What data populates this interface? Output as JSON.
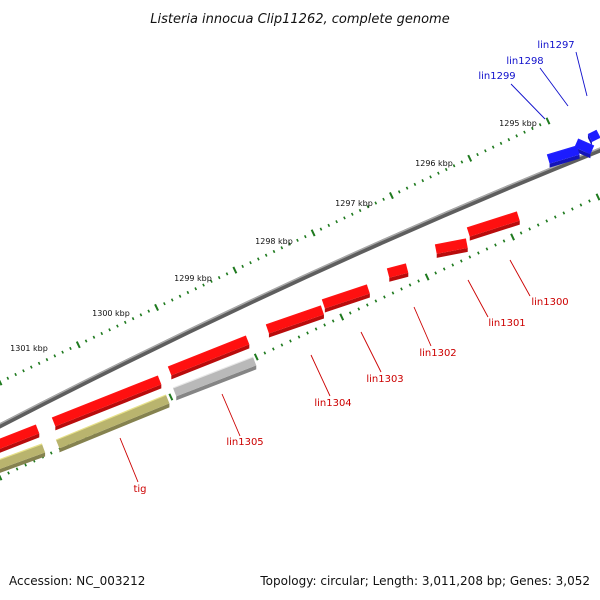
{
  "title": "Listeria innocua Clip11262, complete genome",
  "accession": "Accession: NC_003212",
  "summary": "Topology: circular; Length: 3,011,208 bp; Genes: 3,052",
  "colors": {
    "backbone": "#7a7a7a",
    "ticks": "#1f7a1f",
    "forward": "#ff1010",
    "forward_blue": "#1c1cff",
    "reverse_gray": "#b9b9b9",
    "reverse_olive": "#b9b46e",
    "label_red": "#cc0000",
    "label_blue": "#1010cc"
  },
  "ticks": [
    {
      "kbp": 1295,
      "label": "1295 kbp"
    },
    {
      "kbp": 1296,
      "label": "1296 kbp"
    },
    {
      "kbp": 1297,
      "label": "1297 kbp"
    },
    {
      "kbp": 1298,
      "label": "1298 kbp"
    },
    {
      "kbp": 1299,
      "label": "1299 kbp"
    },
    {
      "kbp": 1300,
      "label": "1300 kbp"
    },
    {
      "kbp": 1301,
      "label": "1301 kbp"
    }
  ],
  "genes": [
    {
      "name": "lin1297",
      "color": "forward_blue",
      "label_color": "label_blue"
    },
    {
      "name": "lin1298",
      "color": "forward_blue",
      "label_color": "label_blue"
    },
    {
      "name": "lin1299",
      "color": "forward_blue",
      "label_color": "label_blue"
    },
    {
      "name": "lin1300",
      "color": "forward",
      "label_color": "label_red"
    },
    {
      "name": "lin1301",
      "color": "forward",
      "label_color": "label_red"
    },
    {
      "name": "lin1302",
      "color": "forward",
      "label_color": "label_red"
    },
    {
      "name": "lin1303",
      "color": "forward",
      "label_color": "label_red"
    },
    {
      "name": "lin1304",
      "color": "forward",
      "label_color": "label_red"
    },
    {
      "name": "lin1305",
      "color": "reverse_gray",
      "label_color": "label_red"
    },
    {
      "name": "tig",
      "color": "reverse_olive",
      "label_color": "label_red"
    }
  ]
}
